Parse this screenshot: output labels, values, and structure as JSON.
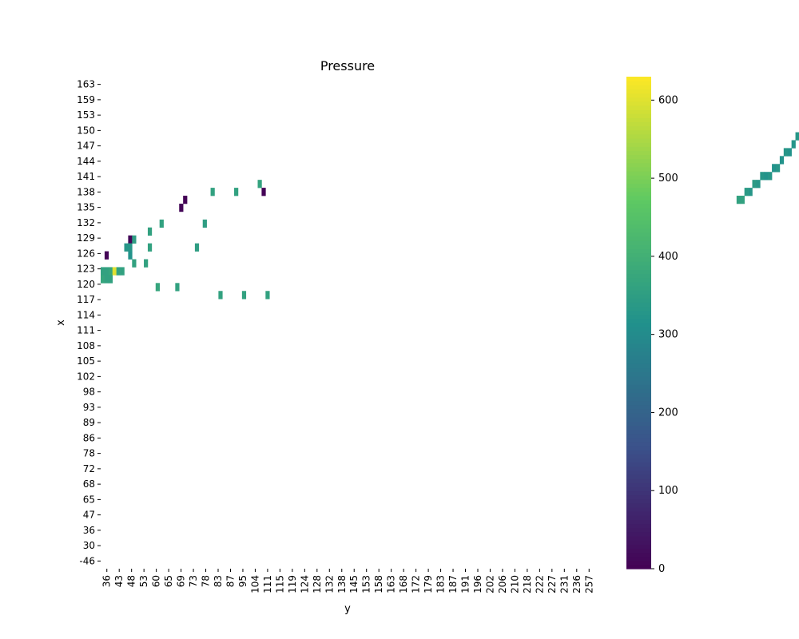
{
  "chart_data": {
    "type": "heatmap",
    "title": "Pressure",
    "xlabel": "y",
    "ylabel": "x",
    "x_tick_labels": [
      "36",
      "43",
      "48",
      "53",
      "60",
      "65",
      "69",
      "73",
      "78",
      "83",
      "87",
      "95",
      "104",
      "111",
      "115",
      "119",
      "124",
      "128",
      "132",
      "138",
      "145",
      "153",
      "158",
      "163",
      "168",
      "172",
      "179",
      "183",
      "187",
      "191",
      "196",
      "202",
      "206",
      "210",
      "218",
      "222",
      "227",
      "231",
      "236",
      "257"
    ],
    "y_tick_labels": [
      "163",
      "159",
      "153",
      "150",
      "147",
      "144",
      "141",
      "138",
      "135",
      "132",
      "129",
      "126",
      "123",
      "120",
      "117",
      "114",
      "111",
      "108",
      "105",
      "102",
      "98",
      "93",
      "89",
      "86",
      "78",
      "72",
      "68",
      "65",
      "47",
      "36",
      "30",
      "-46"
    ],
    "colorbar": {
      "colormap": "viridis",
      "min": 0,
      "max": 630,
      "ticks": [
        0,
        100,
        200,
        300,
        400,
        500,
        600
      ]
    },
    "grid": false,
    "n_cols": 126,
    "n_rows": 62,
    "cells": [
      [
        24,
        0,
        360
      ],
      [
        25,
        0,
        370
      ],
      [
        22,
        1,
        5
      ],
      [
        24,
        1,
        360
      ],
      [
        25,
        1,
        360
      ],
      [
        24,
        2,
        370
      ],
      [
        25,
        2,
        360
      ],
      [
        24,
        3,
        600
      ],
      [
        24,
        4,
        360
      ],
      [
        24,
        5,
        360
      ],
      [
        21,
        6,
        330
      ],
      [
        20,
        7,
        10
      ],
      [
        21,
        7,
        330
      ],
      [
        22,
        7,
        320
      ],
      [
        20,
        8,
        350
      ],
      [
        23,
        8,
        360
      ],
      [
        23,
        11,
        360
      ],
      [
        19,
        12,
        360
      ],
      [
        21,
        12,
        360
      ],
      [
        26,
        14,
        370
      ],
      [
        18,
        15,
        360
      ],
      [
        26,
        19,
        360
      ],
      [
        15,
        21,
        5
      ],
      [
        16,
        20,
        10
      ],
      [
        21,
        24,
        350
      ],
      [
        18,
        26,
        350
      ],
      [
        14,
        28,
        360
      ],
      [
        27,
        30,
        360
      ],
      [
        14,
        34,
        360
      ],
      [
        27,
        36,
        360
      ],
      [
        13,
        40,
        365
      ],
      [
        14,
        41,
        5
      ],
      [
        27,
        42,
        360
      ],
      [
        15,
        162,
        360
      ],
      [
        15,
        163,
        360
      ],
      [
        14,
        164,
        340
      ],
      [
        14,
        165,
        330
      ],
      [
        13,
        166,
        340
      ],
      [
        13,
        167,
        330
      ],
      [
        12,
        168,
        330
      ],
      [
        12,
        169,
        320
      ],
      [
        12,
        170,
        330
      ],
      [
        11,
        171,
        320
      ],
      [
        11,
        172,
        330
      ],
      [
        10,
        173,
        320
      ],
      [
        9,
        174,
        330
      ],
      [
        9,
        175,
        320
      ],
      [
        8,
        176,
        325
      ],
      [
        7,
        177,
        330
      ],
      [
        7,
        178,
        325
      ],
      [
        6,
        179,
        340
      ],
      [
        6,
        180,
        330
      ],
      [
        5,
        181,
        330
      ],
      [
        5,
        182,
        340
      ],
      [
        4,
        183,
        330
      ],
      [
        4,
        184,
        320
      ],
      [
        3,
        185,
        330
      ],
      [
        3,
        186,
        320
      ],
      [
        2,
        187,
        330
      ],
      [
        2,
        188,
        310
      ],
      [
        1,
        189,
        310
      ],
      [
        1,
        190,
        320
      ],
      [
        0,
        191,
        330
      ],
      [
        0,
        192,
        320
      ],
      [
        7,
        189,
        10
      ],
      [
        8,
        186,
        10
      ],
      [
        9,
        185,
        10
      ],
      [
        3,
        189,
        330
      ],
      [
        2,
        191,
        300
      ],
      [
        1,
        192,
        5
      ]
    ],
    "cell_list": []
  }
}
